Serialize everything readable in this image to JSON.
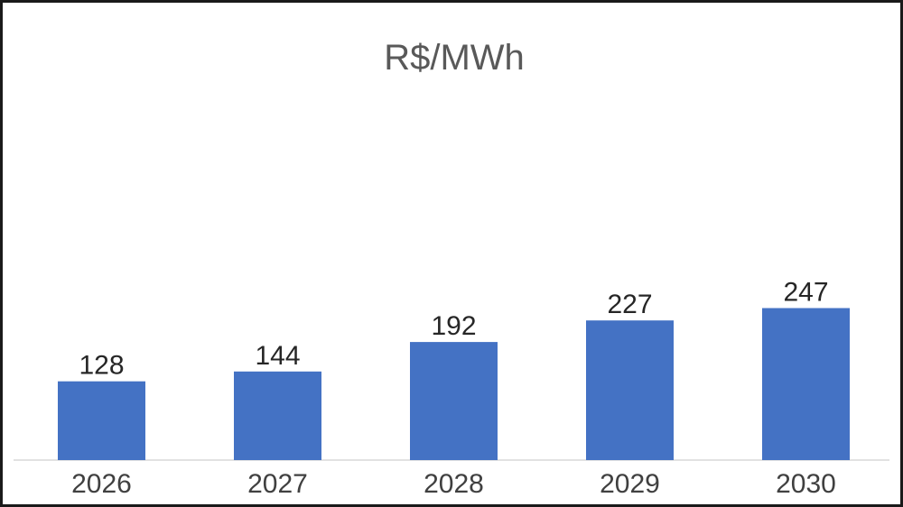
{
  "chart_data": {
    "type": "bar",
    "title": "R$/MWh",
    "categories": [
      "2026",
      "2027",
      "2028",
      "2029",
      "2030"
    ],
    "values": [
      128,
      144,
      192,
      227,
      247
    ],
    "data_labels": [
      "128",
      "144",
      "192",
      "227",
      "247"
    ],
    "xlabel": "",
    "ylabel": "",
    "ylim": [
      0,
      290
    ],
    "grid": false,
    "bar_color": "#4472C4"
  }
}
